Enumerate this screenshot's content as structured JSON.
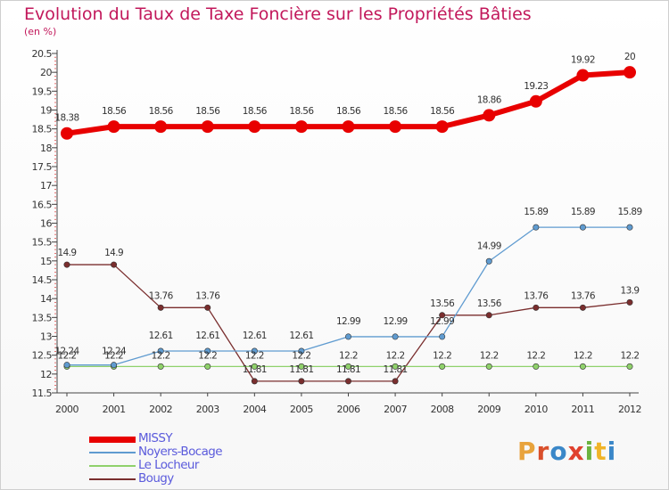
{
  "title": "Evolution du Taux de Taxe Foncière sur les Propriétés Bâties",
  "subtitle": "(en %)",
  "logo": {
    "letters": [
      "P",
      "r",
      "o",
      "x",
      "i",
      "t",
      "i"
    ],
    "colors": [
      "#e8a33c",
      "#d94f2b",
      "#3a87c8",
      "#e0412e",
      "#6cb33f",
      "#f0b429",
      "#3a87c8"
    ]
  },
  "chart_data": {
    "type": "line",
    "title": "Evolution du Taux de Taxe Foncière sur les Propriétés Bâties",
    "ylabel": "(en %)",
    "xlabel": "",
    "categories": [
      "2000",
      "2001",
      "2002",
      "2003",
      "2004",
      "2005",
      "2006",
      "2007",
      "2008",
      "2009",
      "2010",
      "2011",
      "2012"
    ],
    "ylim": [
      11.5,
      20.5
    ],
    "yticks": [
      "11.5",
      "12",
      "12.5",
      "13",
      "13.5",
      "14",
      "14.5",
      "15",
      "15.5",
      "16",
      "16.5",
      "17",
      "17.5",
      "18",
      "18.5",
      "19",
      "19.5",
      "20",
      "20.5"
    ],
    "series": [
      {
        "name": "MISSY",
        "color": "#e80000",
        "width": 6,
        "marker": 7,
        "values": [
          18.38,
          18.56,
          18.56,
          18.56,
          18.56,
          18.56,
          18.56,
          18.56,
          18.56,
          18.86,
          19.23,
          19.92,
          20
        ],
        "labels": [
          "18.38",
          "18.56",
          "18.56",
          "18.56",
          "18.56",
          "18.56",
          "18.56",
          "18.56",
          "18.56",
          "18.86",
          "19.23",
          "19.92",
          "20"
        ]
      },
      {
        "name": "Noyers-Bocage",
        "color": "#5f9bd0",
        "width": 1.3,
        "marker": 3.2,
        "values": [
          12.24,
          12.24,
          12.61,
          12.61,
          12.61,
          12.61,
          12.99,
          12.99,
          12.99,
          14.99,
          15.89,
          15.89,
          15.89
        ],
        "labels": [
          "12.24",
          "12.24",
          "12.61",
          "12.61",
          "12.61",
          "12.61",
          "12.99",
          "12.99",
          "12.99",
          "14.99",
          "15.89",
          "15.89",
          "15.89"
        ]
      },
      {
        "name": "Le Locheur",
        "color": "#8fd16b",
        "width": 1.3,
        "marker": 3.2,
        "values": [
          12.2,
          12.2,
          12.2,
          12.2,
          12.2,
          12.2,
          12.2,
          12.2,
          12.2,
          12.2,
          12.2,
          12.2,
          12.2
        ],
        "labels": [
          "12.2",
          "12.2",
          "12.2",
          "12.2",
          "12.2",
          "12.2",
          "12.2",
          "12.2",
          "12.2",
          "12.2",
          "12.2",
          "12.2",
          "12.2"
        ]
      },
      {
        "name": "Bougy",
        "color": "#7a2e2e",
        "width": 1.3,
        "marker": 3.2,
        "values": [
          14.9,
          14.9,
          13.76,
          13.76,
          11.81,
          11.81,
          11.81,
          11.81,
          13.56,
          13.56,
          13.76,
          13.76,
          13.9
        ],
        "labels": [
          "14.9",
          "14.9",
          "13.76",
          "13.76",
          "11.81",
          "11.81",
          "11.81",
          "11.81",
          "13.56",
          "13.56",
          "13.76",
          "13.76",
          "13.9"
        ]
      }
    ],
    "legend_position": "bottom-left"
  }
}
